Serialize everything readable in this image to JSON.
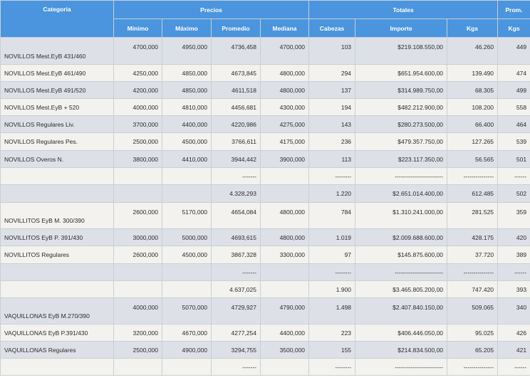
{
  "header": {
    "categoria": "Categoria",
    "precios": "Precios",
    "totales": "Totales",
    "prom": "Prom.",
    "minimo": "Mínimo",
    "maximo": "Máximo",
    "promedio": "Promedio",
    "mediana": "Mediana",
    "cabezas": "Cabezas",
    "importe": "Importe",
    "kgs": "Kgs",
    "prom_kgs": "Kgs"
  },
  "rows": [
    [
      "NOVILLOS Mest.EyB 431/460",
      "4700,000",
      "4950,000",
      "4736,458",
      "4700,000",
      "103",
      "$219.108.550,00",
      "46.260",
      "449"
    ],
    [
      "NOVILLOS Mest.EyB 461/490",
      "4250,000",
      "4850,000",
      "4673,845",
      "4800,000",
      "294",
      "$651.954.600,00",
      "139.490",
      "474"
    ],
    [
      "NOVILLOS Mest.EyB 491/520",
      "4200,000",
      "4850,000",
      "4611,518",
      "4800,000",
      "137",
      "$314.989.750,00",
      "68.305",
      "499"
    ],
    [
      "NOVILLOS Mest.EyB + 520",
      "4000,000",
      "4810,000",
      "4456,681",
      "4300,000",
      "194",
      "$482.212.900,00",
      "108.200",
      "558"
    ],
    [
      "NOVILLOS Regulares Liv.",
      "3700,000",
      "4400,000",
      "4220,986",
      "4275,000",
      "143",
      "$280.273.500,00",
      "66.400",
      "464"
    ],
    [
      "NOVILLOS Regulares Pes.",
      "2500,000",
      "4500,000",
      "3766,611",
      "4175,000",
      "236",
      "$479.357.750,00",
      "127.265",
      "539"
    ],
    [
      "NOVILLOS Overos N.",
      "3800,000",
      "4410,000",
      "3944,442",
      "3900,000",
      "113",
      "$223.117.350,00",
      "56.565",
      "501"
    ],
    [
      "",
      "",
      "",
      "-------",
      "",
      "--------",
      "------------------------",
      "---------------",
      "------"
    ],
    [
      "",
      "",
      "",
      "4.328,293",
      "",
      "1.220",
      "$2.651.014.400,00",
      "612.485",
      "502"
    ],
    [
      "NOVILLITOS EyB M. 300/390",
      "2600,000",
      "5170,000",
      "4654,084",
      "4800,000",
      "784",
      "$1.310.241.000,00",
      "281.525",
      "359"
    ],
    [
      "NOVILLITOS EyB P. 391/430",
      "3000,000",
      "5000,000",
      "4693,615",
      "4800,000",
      "1.019",
      "$2.009.688.600,00",
      "428.175",
      "420"
    ],
    [
      "NOVILLITOS Regulares",
      "2600,000",
      "4500,000",
      "3867,328",
      "3300,000",
      "97",
      "$145.875.600,00",
      "37.720",
      "389"
    ],
    [
      "",
      "",
      "",
      "-------",
      "",
      "--------",
      "------------------------",
      "---------------",
      "------"
    ],
    [
      "",
      "",
      "",
      "4.637,025",
      "",
      "1.900",
      "$3.465.805.200,00",
      "747.420",
      "393"
    ],
    [
      "VAQUILLONAS EyB M.270/390",
      "4000,000",
      "5070,000",
      "4729,927",
      "4790,000",
      "1.498",
      "$2.407.840.150,00",
      "509.065",
      "340"
    ],
    [
      "VAQUILLONAS EyB P.391/430",
      "3200,000",
      "4670,000",
      "4277,254",
      "4400,000",
      "223",
      "$406.446.050,00",
      "95.025",
      "426"
    ],
    [
      "VAQUILLONAS Regulares",
      "2500,000",
      "4900,000",
      "3294,755",
      "3500,000",
      "155",
      "$214.834.500,00",
      "65.205",
      "421"
    ],
    [
      "",
      "",
      "",
      "-------",
      "",
      "--------",
      "------------------------",
      "---------------",
      "------"
    ]
  ]
}
